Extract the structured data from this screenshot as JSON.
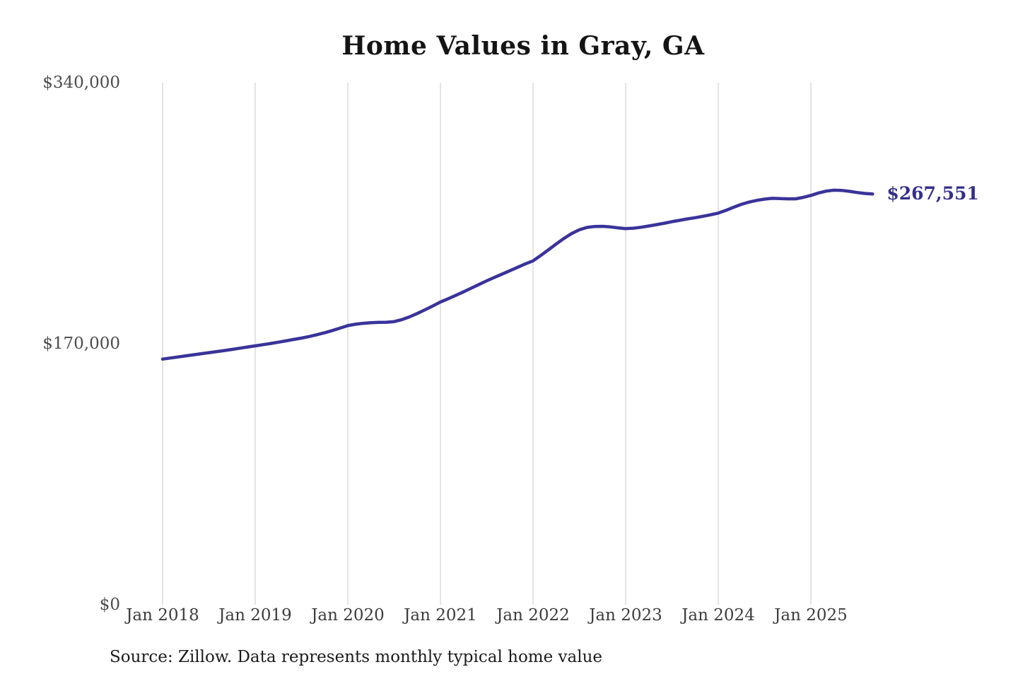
{
  "chart_data": {
    "type": "line",
    "title": "Home Values in Gray, GA",
    "series_name": "Monthly typical home value",
    "unit": "USD",
    "frequency": "monthly",
    "start_month": "Jan 2018",
    "end_month": "Sep 2025",
    "values": [
      160000,
      160700,
      161400,
      162100,
      162800,
      163500,
      164200,
      164900,
      165600,
      166300,
      167100,
      167900,
      168600,
      169400,
      170200,
      171000,
      171900,
      172800,
      173700,
      174700,
      175900,
      177200,
      178600,
      180200,
      181800,
      182700,
      183300,
      183700,
      183900,
      184000,
      184400,
      185700,
      187500,
      189700,
      192100,
      194600,
      197200,
      199300,
      201500,
      203800,
      206200,
      208600,
      211000,
      213200,
      215400,
      217600,
      219800,
      222000,
      224000,
      227500,
      231200,
      235000,
      238600,
      241800,
      244200,
      245800,
      246400,
      246500,
      246100,
      245500,
      245000,
      245300,
      245900,
      246700,
      247600,
      248500,
      249500,
      250400,
      251300,
      252100,
      253000,
      254000,
      255100,
      256900,
      258900,
      260800,
      262300,
      263400,
      264200,
      264700,
      264600,
      264400,
      264400,
      265300,
      266600,
      268200,
      269400,
      270000,
      269900,
      269300,
      268500,
      267900,
      267551
    ],
    "final_value": 267551,
    "end_label": "$267,551",
    "y_ticks": [
      {
        "value": 0,
        "label": "$0"
      },
      {
        "value": 170000,
        "label": "$170,000"
      },
      {
        "value": 340000,
        "label": "$340,000"
      }
    ],
    "x_ticks": [
      {
        "month_index": 0,
        "label": "Jan 2018"
      },
      {
        "month_index": 12,
        "label": "Jan 2019"
      },
      {
        "month_index": 24,
        "label": "Jan 2020"
      },
      {
        "month_index": 36,
        "label": "Jan 2021"
      },
      {
        "month_index": 48,
        "label": "Jan 2022"
      },
      {
        "month_index": 60,
        "label": "Jan 2023"
      },
      {
        "month_index": 72,
        "label": "Jan 2024"
      },
      {
        "month_index": 84,
        "label": "Jan 2025"
      }
    ],
    "ylim": [
      0,
      340000
    ],
    "grid": "vertical-only",
    "legend": "none",
    "line_color": "#3a339a",
    "grid_color": "#c9c9c9",
    "end_label_color": "#332f8a",
    "source_note": "Source: Zillow. Data represents monthly typical home value"
  }
}
